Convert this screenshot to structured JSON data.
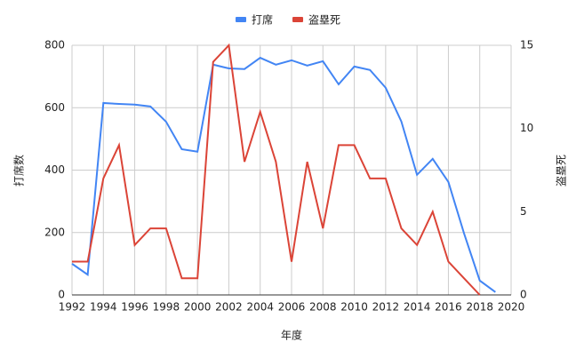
{
  "chart_data": {
    "type": "line",
    "x": [
      1992,
      1993,
      1994,
      1995,
      1996,
      1997,
      1998,
      1999,
      2000,
      2001,
      2002,
      2003,
      2004,
      2005,
      2006,
      2007,
      2008,
      2009,
      2010,
      2011,
      2012,
      2013,
      2014,
      2015,
      2016,
      2017,
      2018,
      2019
    ],
    "series": [
      {
        "name": "打席",
        "color": "#4285f4",
        "values": [
          100,
          65,
          615,
          612,
          610,
          604,
          555,
          467,
          459,
          738,
          726,
          724,
          760,
          738,
          752,
          735,
          749,
          675,
          732,
          721,
          664,
          556,
          385,
          436,
          362,
          197,
          46,
          9
        ]
      },
      {
        "name": "盗塁死",
        "color": "#db4437",
        "axis": "y2",
        "values": [
          2,
          2,
          7,
          9,
          3,
          4,
          4,
          1,
          1,
          14,
          15,
          8,
          11,
          8,
          2,
          8,
          4,
          9,
          9,
          7,
          7,
          4,
          3,
          5,
          2,
          1,
          0,
          null
        ]
      }
    ],
    "xlim": [
      1992,
      2020
    ],
    "xticks": [
      1992,
      1994,
      1996,
      1998,
      2000,
      2002,
      2004,
      2006,
      2008,
      2010,
      2012,
      2014,
      2016,
      2018,
      2020
    ],
    "ylim": [
      0,
      800
    ],
    "yticks": [
      0,
      200,
      400,
      600,
      800
    ],
    "y2lim": [
      0,
      15
    ],
    "y2ticks": [
      0,
      5,
      10,
      15
    ],
    "xlabel": "年度",
    "ylabel": "打席数",
    "y2label": "盗塁死",
    "grid": true,
    "legend": "top"
  }
}
